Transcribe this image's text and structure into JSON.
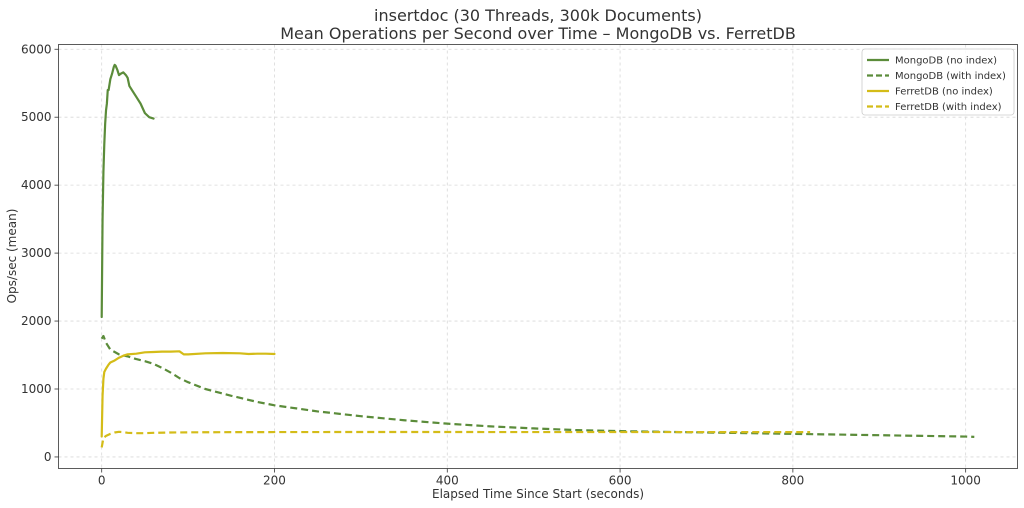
{
  "chart_data": {
    "type": "line",
    "title": "insertdoc (30 Threads, 300k Documents)",
    "subtitle": "Mean Operations per Second over Time – MongoDB vs. FerretDB",
    "xlabel": "Elapsed Time Since Start (seconds)",
    "ylabel": "Ops/sec (mean)",
    "xlim": [
      -50,
      1060
    ],
    "ylim": [
      -170,
      6070
    ],
    "xticks": [
      0,
      200,
      400,
      600,
      800,
      1000
    ],
    "yticks": [
      0,
      1000,
      2000,
      3000,
      4000,
      5000,
      6000
    ],
    "grid": true,
    "grid_style": "dashed",
    "legend_position": "top-right",
    "series": [
      {
        "name": "MongoDB (no index)",
        "color": "#5b8c3a",
        "style": "solid",
        "x": [
          0,
          1,
          2,
          3,
          4,
          5,
          6,
          7,
          8,
          10,
          12,
          14,
          15,
          16,
          18,
          20,
          22,
          25,
          28,
          30,
          32,
          35,
          40,
          45,
          50,
          55,
          60
        ],
        "y": [
          2060,
          3500,
          4200,
          4600,
          4900,
          5100,
          5200,
          5400,
          5400,
          5560,
          5640,
          5740,
          5770,
          5760,
          5700,
          5620,
          5640,
          5660,
          5620,
          5580,
          5460,
          5400,
          5300,
          5200,
          5060,
          5000,
          4980
        ]
      },
      {
        "name": "MongoDB (with index)",
        "color": "#5b8c3a",
        "style": "dashed",
        "x": [
          0,
          2,
          5,
          10,
          20,
          30,
          40,
          50,
          60,
          70,
          80,
          90,
          100,
          120,
          150,
          180,
          200,
          250,
          300,
          350,
          400,
          450,
          500,
          550,
          600,
          650,
          700,
          750,
          800,
          850,
          900,
          950,
          1000,
          1010
        ],
        "y": [
          1740,
          1780,
          1680,
          1580,
          1510,
          1480,
          1440,
          1410,
          1370,
          1310,
          1240,
          1160,
          1100,
          1000,
          900,
          810,
          760,
          670,
          600,
          540,
          490,
          450,
          420,
          395,
          380,
          370,
          360,
          350,
          340,
          330,
          320,
          310,
          300,
          295
        ]
      },
      {
        "name": "FerretDB (no index)",
        "color": "#d4bc18",
        "style": "solid",
        "x": [
          0,
          1,
          2,
          3,
          5,
          8,
          10,
          15,
          20,
          25,
          30,
          40,
          50,
          60,
          70,
          80,
          90,
          95,
          100,
          120,
          140,
          160,
          170,
          180,
          190,
          200
        ],
        "y": [
          300,
          900,
          1150,
          1250,
          1300,
          1360,
          1390,
          1420,
          1460,
          1490,
          1510,
          1520,
          1540,
          1545,
          1550,
          1550,
          1555,
          1510,
          1510,
          1525,
          1530,
          1525,
          1515,
          1520,
          1520,
          1515
        ]
      },
      {
        "name": "FerretDB (with index)",
        "color": "#d4bc18",
        "style": "dashed",
        "x": [
          0,
          2,
          5,
          10,
          15,
          20,
          25,
          30,
          40,
          50,
          60,
          80,
          100,
          150,
          200,
          300,
          400,
          500,
          600,
          700,
          800,
          820
        ],
        "y": [
          140,
          280,
          310,
          340,
          360,
          370,
          365,
          355,
          350,
          350,
          355,
          360,
          362,
          365,
          366,
          367,
          367,
          366,
          366,
          366,
          365,
          365
        ]
      }
    ]
  }
}
